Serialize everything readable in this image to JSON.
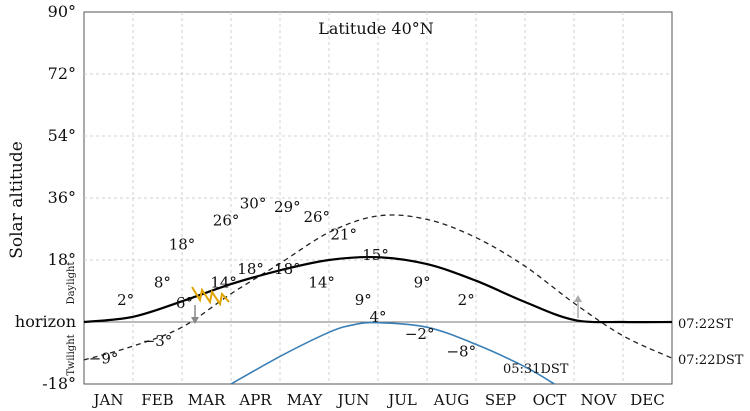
{
  "chart_data": {
    "type": "line",
    "title": "Latitude 40°N",
    "ylabel": "Solar altitude",
    "ylim": [
      -18,
      90
    ],
    "y_ticks": [
      "90°",
      "72°",
      "54°",
      "36°",
      "18°",
      "horizon",
      "-18°"
    ],
    "y_tick_values": [
      90,
      72,
      54,
      36,
      18,
      0,
      -18
    ],
    "months": [
      "JAN",
      "FEB",
      "MAR",
      "APR",
      "MAY",
      "JUN",
      "JUL",
      "AUG",
      "SEP",
      "OCT",
      "NOV",
      "DEC"
    ],
    "daylight_label": "Daylight",
    "twilight_label": "Twilight",
    "right_labels": {
      "st": "07:22ST",
      "dst": "07:22DST",
      "blue": "05:31DST"
    },
    "series": [
      {
        "style": "dashed",
        "x": [
          0,
          1,
          2,
          3,
          4,
          5,
          6,
          7,
          8,
          9,
          10,
          11,
          12
        ],
        "y": [
          -11.0,
          -7.0,
          -1.5,
          8.2,
          17.0,
          26.0,
          30.8,
          29.8,
          24.5,
          16.2,
          5.5,
          -4.0,
          -10.5
        ]
      },
      {
        "style": "solid",
        "x": [
          0,
          1,
          2,
          3,
          4,
          5,
          6,
          7,
          8,
          9,
          10,
          11,
          12
        ],
        "y": [
          0.0,
          1.5,
          6.0,
          11.0,
          15.0,
          18.0,
          18.8,
          16.8,
          12.0,
          5.8,
          0.6,
          0.0,
          0.0
        ]
      },
      {
        "style": "blue",
        "x": [
          3.0,
          4.0,
          5.0,
          5.5,
          6.0,
          7.0,
          8.0,
          9.0,
          9.6
        ],
        "y": [
          -18.0,
          -10.0,
          -3.0,
          -0.8,
          -0.2,
          -1.5,
          -6.5,
          -13.0,
          -18.0
        ]
      }
    ],
    "dashed_labels": [
      {
        "text": "−9°",
        "x": 0.8,
        "y": -12
      },
      {
        "text": "−3°",
        "x": 3.0,
        "y": -7
      },
      {
        "text": "6°",
        "x": 4.1,
        "y": 4
      },
      {
        "text": "18°",
        "x": 4.0,
        "y": 21
      },
      {
        "text": "26°",
        "x": 5.8,
        "y": 28
      },
      {
        "text": "30°",
        "x": 6.9,
        "y": 33
      },
      {
        "text": "29°",
        "x": 8.3,
        "y": 32
      },
      {
        "text": "26°",
        "x": 9.5,
        "y": 29
      },
      {
        "text": "21°",
        "x": 10.6,
        "y": 24
      },
      {
        "text": "15°",
        "x": 11.9,
        "y": 18
      },
      {
        "text": "4°",
        "x": 12.0,
        "y": 0
      },
      {
        "text": "−2°",
        "x": 13.7,
        "y": -5
      },
      {
        "text": "−8°",
        "x": 15.4,
        "y": -10
      }
    ],
    "solid_labels": [
      {
        "text": "2°",
        "x": 1.7,
        "y": 5
      },
      {
        "text": "8°",
        "x": 3.2,
        "y": 10
      },
      {
        "text": "14°",
        "x": 5.7,
        "y": 10
      },
      {
        "text": "18°",
        "x": 6.8,
        "y": 14
      },
      {
        "text": "18°",
        "x": 8.3,
        "y": 14
      },
      {
        "text": "14°",
        "x": 9.7,
        "y": 10
      },
      {
        "text": "9°",
        "x": 11.4,
        "y": 5
      },
      {
        "text": "9°",
        "x": 13.8,
        "y": 10
      },
      {
        "text": "2°",
        "x": 15.6,
        "y": 5
      }
    ]
  }
}
